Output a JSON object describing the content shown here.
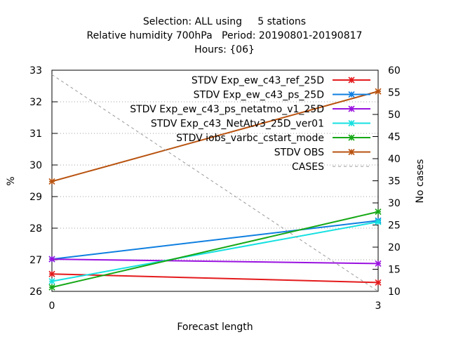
{
  "chart_data": {
    "type": "line",
    "title_lines": [
      "Selection: ALL using     5 stations",
      "Relative humidity 700hPa   Period: 20190801-20190817",
      "Hours: {06}"
    ],
    "xlabel": "Forecast length",
    "ylabel": "%",
    "y2label": "No cases",
    "x": [
      0,
      3
    ],
    "x_ticks": [
      "0",
      "3"
    ],
    "xlim": [
      0,
      3
    ],
    "ylim": [
      26,
      33
    ],
    "y_ticks": [
      "26",
      "27",
      "28",
      "29",
      "30",
      "31",
      "32",
      "33"
    ],
    "y2lim": [
      10,
      60
    ],
    "y2_ticks": [
      "10",
      "15",
      "20",
      "25",
      "30",
      "35",
      "40",
      "45",
      "50",
      "55",
      "60"
    ],
    "grid": true,
    "legend_position": "top-right",
    "series": [
      {
        "name": "STDV Exp_ew_c43_ref_25D",
        "color": "#e41a1c",
        "values": [
          26.55,
          26.28
        ],
        "axis": "left"
      },
      {
        "name": "STDV Exp_ew_c43_ps_25D",
        "color": "#0f7fe0",
        "values": [
          27.02,
          28.24
        ],
        "axis": "left"
      },
      {
        "name": "STDV Exp_ew_c43_ps_netatmo_v1_25D",
        "color": "#9a12e0",
        "values": [
          27.02,
          26.88
        ],
        "axis": "left"
      },
      {
        "name": "STDV Exp_c43_NetAtv3_25D_ver01",
        "color": "#15e0e0",
        "values": [
          26.32,
          28.2
        ],
        "axis": "left"
      },
      {
        "name": "STDV iobs_varbc_cstart_mode",
        "color": "#16a816",
        "values": [
          26.13,
          28.52
        ],
        "axis": "left"
      },
      {
        "name": "STDV OBS",
        "color": "#b8520e",
        "values": [
          29.48,
          32.33
        ],
        "axis": "left"
      },
      {
        "name": "CASES",
        "color": "#999999",
        "values": [
          59,
          10
        ],
        "axis": "right",
        "dashed": true
      }
    ]
  }
}
